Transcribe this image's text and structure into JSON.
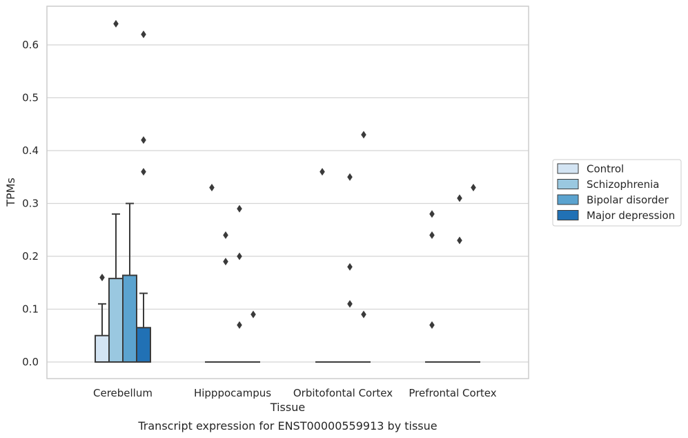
{
  "chart_data": {
    "type": "box",
    "xlabel": "Tissue",
    "ylabel": "TPMs",
    "caption": "Transcript expression for ENST00000559913 by tissue",
    "ylim": [
      -0.032,
      0.675
    ],
    "yticks": [
      0.0,
      0.1,
      0.2,
      0.3,
      0.4,
      0.5,
      0.6
    ],
    "ytick_labels": [
      "0.0",
      "0.1",
      "0.2",
      "0.3",
      "0.4",
      "0.5",
      "0.6"
    ],
    "grid": "horizontal",
    "legend_position": "right",
    "categories": [
      "Cerebellum",
      "Hipppocampus",
      "Orbitofontal Cortex",
      "Prefrontal Cortex"
    ],
    "series": [
      {
        "name": "Control",
        "color": "#d3e4f3",
        "boxes": [
          {
            "q1": 0.0,
            "median": 0.0,
            "q3": 0.05,
            "whisker_low": 0.0,
            "whisker_high": 0.11,
            "outliers": [
              0.16
            ]
          },
          {
            "q1": 0.0,
            "median": 0.0,
            "q3": 0.0,
            "whisker_low": 0.0,
            "whisker_high": 0.0,
            "outliers": [
              0.33
            ]
          },
          {
            "q1": 0.0,
            "median": 0.0,
            "q3": 0.0,
            "whisker_low": 0.0,
            "whisker_high": 0.0,
            "outliers": [
              0.36
            ]
          },
          {
            "q1": 0.0,
            "median": 0.0,
            "q3": 0.0,
            "whisker_low": 0.0,
            "whisker_high": 0.0,
            "outliers": [
              0.28,
              0.24,
              0.07
            ]
          }
        ]
      },
      {
        "name": "Schizophrenia",
        "color": "#9ac8e0",
        "boxes": [
          {
            "q1": 0.0,
            "median": 0.0,
            "q3": 0.158,
            "whisker_low": 0.0,
            "whisker_high": 0.28,
            "outliers": [
              0.64
            ]
          },
          {
            "q1": 0.0,
            "median": 0.0,
            "q3": 0.0,
            "whisker_low": 0.0,
            "whisker_high": 0.0,
            "outliers": [
              0.24,
              0.19
            ]
          },
          {
            "q1": 0.0,
            "median": 0.0,
            "q3": 0.0,
            "whisker_low": 0.0,
            "whisker_high": 0.0,
            "outliers": []
          },
          {
            "q1": 0.0,
            "median": 0.0,
            "q3": 0.0,
            "whisker_low": 0.0,
            "whisker_high": 0.0,
            "outliers": []
          }
        ]
      },
      {
        "name": "Bipolar disorder",
        "color": "#5ba3cf",
        "boxes": [
          {
            "q1": 0.0,
            "median": 0.0,
            "q3": 0.164,
            "whisker_low": 0.0,
            "whisker_high": 0.3,
            "outliers": []
          },
          {
            "q1": 0.0,
            "median": 0.0,
            "q3": 0.0,
            "whisker_low": 0.0,
            "whisker_high": 0.0,
            "outliers": [
              0.29,
              0.2,
              0.07
            ]
          },
          {
            "q1": 0.0,
            "median": 0.0,
            "q3": 0.0,
            "whisker_low": 0.0,
            "whisker_high": 0.0,
            "outliers": [
              0.35,
              0.18,
              0.11
            ]
          },
          {
            "q1": 0.0,
            "median": 0.0,
            "q3": 0.0,
            "whisker_low": 0.0,
            "whisker_high": 0.0,
            "outliers": [
              0.31,
              0.23
            ]
          }
        ]
      },
      {
        "name": "Major depression",
        "color": "#2171b5",
        "boxes": [
          {
            "q1": 0.0,
            "median": 0.0,
            "q3": 0.065,
            "whisker_low": 0.0,
            "whisker_high": 0.13,
            "outliers": [
              0.62,
              0.42,
              0.36
            ]
          },
          {
            "q1": 0.0,
            "median": 0.0,
            "q3": 0.0,
            "whisker_low": 0.0,
            "whisker_high": 0.0,
            "outliers": [
              0.09
            ]
          },
          {
            "q1": 0.0,
            "median": 0.0,
            "q3": 0.0,
            "whisker_low": 0.0,
            "whisker_high": 0.0,
            "outliers": [
              0.43,
              0.09
            ]
          },
          {
            "q1": 0.0,
            "median": 0.0,
            "q3": 0.0,
            "whisker_low": 0.0,
            "whisker_high": 0.0,
            "outliers": [
              0.33
            ]
          }
        ]
      }
    ]
  }
}
